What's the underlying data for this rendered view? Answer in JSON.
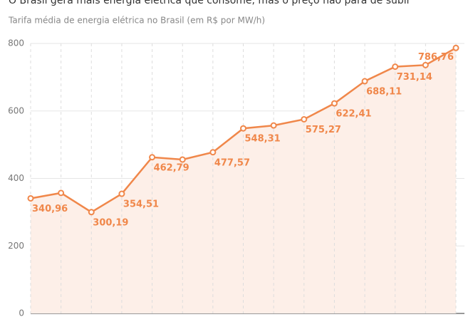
{
  "chart_data": {
    "type": "line",
    "title": "O Brasil gera mais energia elétrica que consome, mas o preço não para de subir",
    "subtitle": "Tarifa média de energia elétrica no Brasil (em R$ por MW/h)",
    "categories": [
      null,
      null,
      null,
      null,
      null,
      null,
      null,
      null,
      null,
      null,
      null,
      null,
      null,
      null,
      null
    ],
    "series": [
      {
        "name": "Tarifa média",
        "color": "#f0874a",
        "values": [
          340.96,
          357,
          300.19,
          354.51,
          462.79,
          456,
          477.57,
          548.31,
          557,
          575.27,
          622.41,
          688.11,
          731.14,
          736,
          786.76
        ],
        "value_labels": [
          "340,96",
          null,
          "300,19",
          "354,51",
          "462,79",
          null,
          "477,57",
          "548,31",
          null,
          "575,27",
          "622,41",
          "688,11",
          "731,14",
          null,
          "786,76"
        ]
      }
    ],
    "ylim": [
      0,
      800
    ],
    "yticks": [
      0,
      200,
      400,
      600,
      800
    ],
    "grid": true,
    "area_fill": "#fdefe8"
  }
}
